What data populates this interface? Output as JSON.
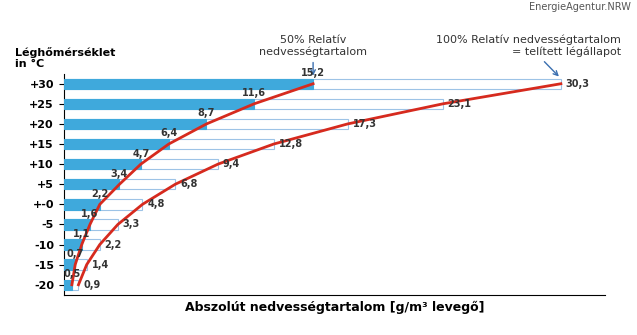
{
  "chart_data": {
    "type": "bar",
    "orientation": "horizontal",
    "brand": "EnergieAgentur.NRW",
    "x_label": "Abszolút nedvességtartalom [g/m³ levegő]",
    "y_label": "Léghőmérséklet\nin °C",
    "x": [
      -20,
      -15,
      -10,
      -5,
      0,
      5,
      10,
      15,
      20,
      25,
      30
    ],
    "series": [
      {
        "name": "100% Relatív nedvességtartalom\n= telített légállapot",
        "color": "#ffffff",
        "values": [
          0.9,
          1.4,
          2.2,
          3.3,
          4.8,
          6.8,
          9.4,
          12.8,
          17.3,
          23.1,
          30.3
        ],
        "value_labels": [
          "0,9",
          "1,4",
          "2,2",
          "3,3",
          "4,8",
          "6,8",
          "9,4",
          "12,8",
          "17,3",
          "23,1",
          "30,3"
        ]
      },
      {
        "name": "50% Relatív\nnedvességtartalom",
        "color": "#3fa9dc",
        "values": [
          0.5,
          0.7,
          1.1,
          1.6,
          2.2,
          3.4,
          4.7,
          6.4,
          8.7,
          11.6,
          15.2
        ],
        "value_labels": [
          "0,5",
          "0,7",
          "1,1",
          "1,6",
          "2,2",
          "3,4",
          "4,7",
          "6,4",
          "8,7",
          "11,6",
          "15,2"
        ]
      }
    ],
    "xlim": [
      0,
      33
    ],
    "ylim": [
      -22.5,
      32.5
    ],
    "yticks": [
      -20,
      -15,
      -10,
      -5,
      {
        "value": 0,
        "label": "+-0"
      },
      {
        "value": 5,
        "label": "+5"
      },
      {
        "value": 10,
        "label": "+10"
      },
      {
        "value": 15,
        "label": "+15"
      },
      {
        "value": 20,
        "label": "+20"
      },
      {
        "value": 25,
        "label": "+25"
      },
      {
        "value": 30,
        "label": "+30"
      }
    ],
    "tick_labels": "y",
    "data_labels": true,
    "grid": false
  }
}
